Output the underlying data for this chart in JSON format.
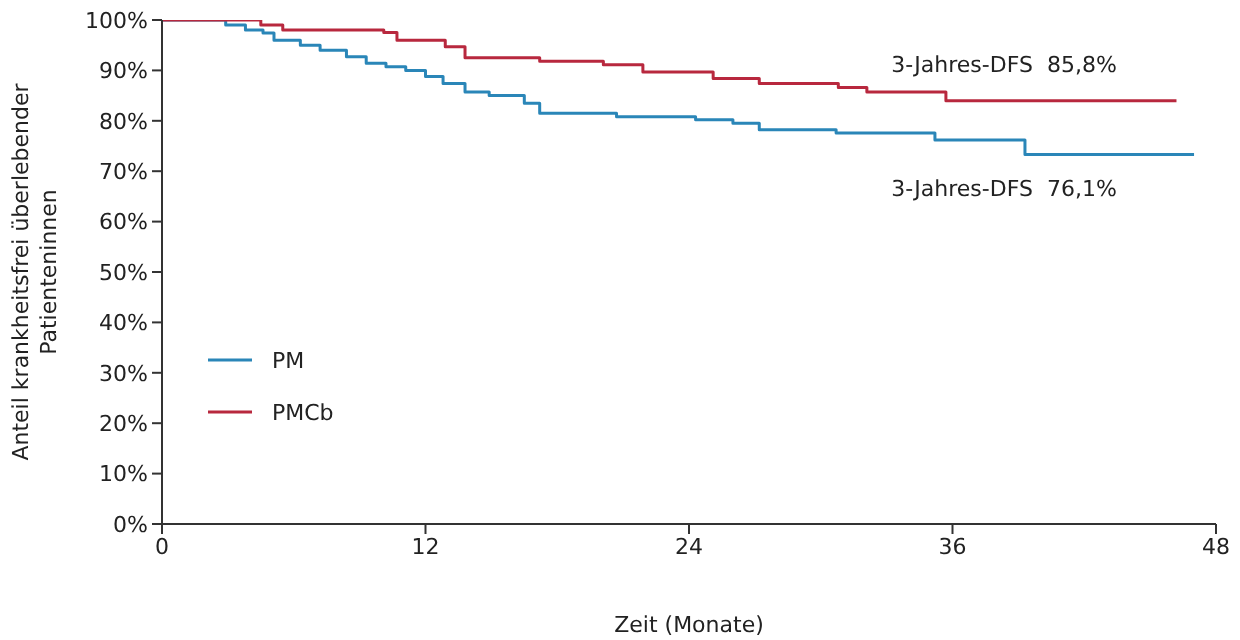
{
  "chart_data": {
    "type": "step",
    "xlabel": "Zeit (Monate)",
    "ylabel": "Anteil krankheitsfrei überlebender Patienteninnen",
    "xlim": [
      0,
      48
    ],
    "xticks": [
      0,
      12,
      24,
      36,
      48
    ],
    "ylim": [
      0,
      100
    ],
    "yticks": [
      {
        "value": 0,
        "label": "0%"
      },
      {
        "value": 10,
        "label": "10%"
      },
      {
        "value": 20,
        "label": "20%"
      },
      {
        "value": 30,
        "label": "30%"
      },
      {
        "value": 40,
        "label": "40%"
      },
      {
        "value": 50,
        "label": "50%"
      },
      {
        "value": 60,
        "label": "60%"
      },
      {
        "value": 70,
        "label": "70%"
      },
      {
        "value": 80,
        "label": "80%"
      },
      {
        "value": 90,
        "label": "90%"
      },
      {
        "value": 100,
        "label": "100%"
      }
    ],
    "grid": false,
    "legend": "left",
    "marker": "none",
    "line_style": "solid",
    "series": [
      {
        "name": "PM",
        "color": "#2a86b8",
        "x": [
          0,
          2.9,
          3.8,
          4.6,
          5.1,
          6.3,
          7.2,
          8.4,
          9.3,
          10.2,
          11.1,
          12.0,
          12.8,
          13.8,
          14.9,
          16.5,
          17.2,
          20.7,
          24.3,
          26.0,
          27.2,
          30.7,
          35.2,
          39.3,
          47
        ],
        "values": [
          100,
          99,
          98,
          97.4,
          96,
          95,
          94,
          92.7,
          91.4,
          90.7,
          90,
          88.8,
          87.4,
          85.7,
          85,
          83.5,
          81.5,
          80.8,
          80.2,
          79.5,
          78.2,
          77.6,
          76.2,
          73.3,
          73.3
        ]
      },
      {
        "name": "PMCb",
        "color": "#b8283e",
        "x": [
          0,
          4.5,
          5.5,
          10.1,
          10.7,
          12.9,
          13.8,
          17.2,
          20.1,
          21.9,
          25.1,
          27.2,
          30.8,
          32.1,
          35.7,
          46.2
        ],
        "values": [
          100,
          99,
          98,
          97.5,
          96,
          94.7,
          92.5,
          91.8,
          91.1,
          89.7,
          88.4,
          87.4,
          86.6,
          85.7,
          84,
          84
        ]
      }
    ],
    "annotations": [
      "3-Jahres-DFS  85,8%",
      "3-Jahres-DFS  76,1%"
    ]
  }
}
